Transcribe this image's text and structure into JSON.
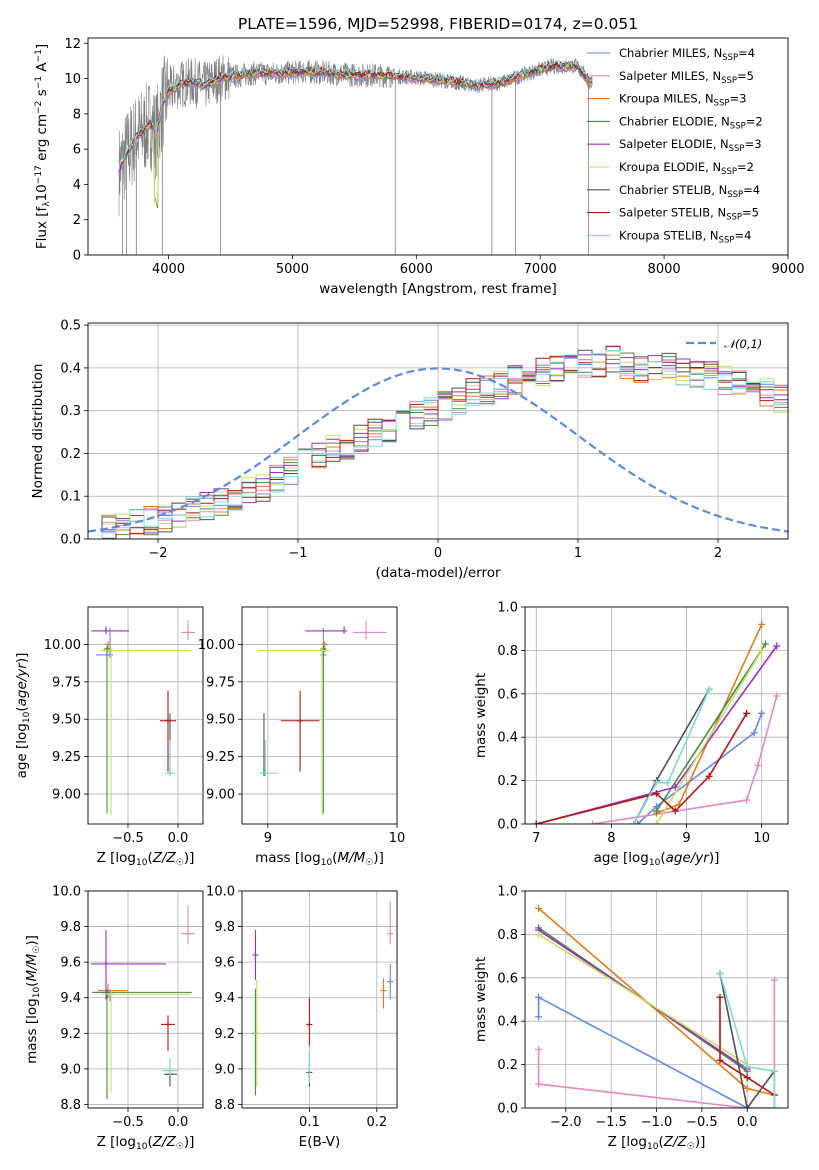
{
  "figure": {
    "title": "PLATE=1596, MJD=52998, FIBERID=0174, z=0.051"
  },
  "colors": {
    "Chabrier MILES": "#6688dd",
    "Salpeter MILES": "#e48ac0",
    "Kroupa MILES": "#e07b20",
    "Chabrier ELODIE": "#4a8a4a",
    "Salpeter ELODIE": "#9b30c0",
    "Kroupa ELODIE": "#c8e060",
    "Chabrier STELIB": "#505050",
    "Salpeter STELIB": "#b01818",
    "Kroupa STELIB": "#80d8d8",
    "data": "#7f7f7f",
    "gaussian": "#5b8bd9"
  },
  "chart_data": [
    {
      "type": "line",
      "panel": "spectrum",
      "title": "PLATE=1596, MJD=52998, FIBERID=0174, z=0.051",
      "xlabel": "wavelength [Angstrom, rest frame]",
      "ylabel": "Flux [f_λ 10^-17 erg cm^-2 s^-1 A^-1]",
      "xlim": [
        3350,
        9000
      ],
      "ylim": [
        0,
        12.3
      ],
      "xticks": [
        4000,
        5000,
        6000,
        7000,
        8000,
        9000
      ],
      "yticks": [
        0,
        2,
        4,
        6,
        8,
        10,
        12
      ],
      "grid": true,
      "legend_position": "right",
      "continuum": {
        "x": [
          3600,
          3650,
          3700,
          3750,
          3800,
          3850,
          3900,
          3950,
          4000,
          4100,
          4200,
          4300,
          4400,
          4500,
          4700,
          4900,
          5100,
          5300,
          5500,
          5700,
          5900,
          6100,
          6300,
          6500,
          6700,
          6900,
          7100,
          7300,
          7400
        ],
        "y": [
          4.8,
          5.6,
          6.2,
          6.8,
          7.0,
          7.5,
          6.8,
          8.5,
          9.3,
          9.7,
          9.8,
          9.6,
          10.0,
          10.1,
          10.3,
          10.3,
          10.4,
          10.3,
          10.2,
          10.2,
          10.1,
          10.0,
          9.8,
          9.6,
          9.8,
          10.3,
          10.7,
          10.7,
          9.8
        ]
      },
      "series": [
        {
          "name": "Chabrier MILES",
          "nssp": "4"
        },
        {
          "name": "Salpeter MILES",
          "nssp": "5"
        },
        {
          "name": "Kroupa MILES",
          "nssp": "3"
        },
        {
          "name": "Chabrier ELODIE",
          "nssp": "2"
        },
        {
          "name": "Salpeter ELODIE",
          "nssp": "3"
        },
        {
          "name": "Kroupa ELODIE",
          "nssp": "2"
        },
        {
          "name": "Chabrier STELIB",
          "nssp": "4"
        },
        {
          "name": "Salpeter STELIB",
          "nssp": "5"
        },
        {
          "name": "Kroupa STELIB",
          "nssp": "4"
        }
      ]
    },
    {
      "type": "histogram",
      "panel": "residuals",
      "xlabel": "(data-model)/error",
      "ylabel": "Normed distribution",
      "xlim": [
        -2.5,
        2.5
      ],
      "ylim": [
        0,
        0.505
      ],
      "xticks": [
        -2,
        -1,
        0,
        1,
        2
      ],
      "yticks": [
        0.0,
        0.1,
        0.2,
        0.3,
        0.4,
        0.5
      ],
      "grid": true,
      "legend_position": "top-right",
      "gaussian_label": "𝒩(0,1)",
      "bin_width": 0.1,
      "envelope": [
        0.02,
        0.025,
        0.03,
        0.035,
        0.045,
        0.05,
        0.055,
        0.065,
        0.075,
        0.085,
        0.1,
        0.11,
        0.12,
        0.14,
        0.16,
        0.18,
        0.19,
        0.21,
        0.22,
        0.24,
        0.25,
        0.26,
        0.28,
        0.29,
        0.3,
        0.31,
        0.32,
        0.34,
        0.35,
        0.36,
        0.37,
        0.38,
        0.39,
        0.4,
        0.4,
        0.41,
        0.41,
        0.42,
        0.41,
        0.4,
        0.4,
        0.4,
        0.39,
        0.39,
        0.38,
        0.37,
        0.36,
        0.35,
        0.34,
        0.33,
        0.31,
        0.3,
        0.28,
        0.27,
        0.25,
        0.24,
        0.22,
        0.21,
        0.19,
        0.17,
        0.16,
        0.14,
        0.13,
        0.11,
        0.1,
        0.09,
        0.08,
        0.07,
        0.06,
        0.05,
        0.04,
        0.035,
        0.03,
        0.025,
        0.02
      ]
    },
    {
      "type": "scatter",
      "panel": "age-vs-Z",
      "xlabel": "Z [log10(Z/Z☉)]",
      "ylabel": "age [log10(age/yr)]",
      "xlim": [
        -0.9,
        0.25
      ],
      "ylim": [
        8.8,
        10.25
      ],
      "xticks": [
        -0.5,
        0.0
      ],
      "yticks": [
        9.0,
        9.25,
        9.5,
        9.75,
        10.0
      ],
      "points": [
        {
          "series": "Chabrier MILES",
          "x": -0.68,
          "xerr": [
            0.14,
            0.0
          ],
          "y": 9.93,
          "yerr": [
            0.0,
            0.18
          ]
        },
        {
          "series": "Salpeter MILES",
          "x": 0.1,
          "xerr": [
            0.07,
            0.07
          ],
          "y": 10.08,
          "yerr": [
            0.05,
            0.08
          ]
        },
        {
          "series": "Kroupa MILES",
          "x": -0.7,
          "xerr": [
            0.0,
            0.02
          ],
          "y": 10.0,
          "yerr": [
            0.05,
            0.0
          ]
        },
        {
          "series": "Chabrier ELODIE",
          "x": -0.71,
          "xerr": [
            0.0,
            0.0
          ],
          "y": 9.97,
          "yerr": [
            1.1,
            0.0
          ]
        },
        {
          "series": "Salpeter ELODIE",
          "x": -0.72,
          "xerr": [
            0.15,
            0.23
          ],
          "y": 10.09,
          "yerr": [
            0.0,
            0.03
          ]
        },
        {
          "series": "Kroupa ELODIE",
          "x": -0.67,
          "xerr": [
            0.1,
            0.8
          ],
          "y": 9.96,
          "yerr": [
            1.1,
            0.0
          ]
        },
        {
          "series": "Chabrier STELIB",
          "x": -0.08,
          "xerr": [
            0.0,
            0.0
          ],
          "y": 9.14,
          "yerr": [
            0.0,
            0.4
          ]
        },
        {
          "series": "Salpeter STELIB",
          "x": -0.1,
          "xerr": [
            0.08,
            0.08
          ],
          "y": 9.49,
          "yerr": [
            0.34,
            0.2
          ]
        },
        {
          "series": "Kroupa STELIB",
          "x": -0.08,
          "xerr": [
            0.05,
            0.05
          ],
          "y": 9.14,
          "yerr": [
            0.02,
            0.22
          ]
        }
      ]
    },
    {
      "type": "scatter",
      "panel": "age-vs-mass",
      "xlabel": "mass [log10(M/M☉)]",
      "ylabel": "",
      "xlim": [
        8.8,
        10.0
      ],
      "ylim": [
        8.8,
        10.25
      ],
      "xticks": [
        9,
        10
      ],
      "yticks": [
        9.0,
        9.25,
        9.5,
        9.75,
        10.0
      ],
      "points": [
        {
          "series": "Chabrier MILES",
          "x": 9.43,
          "xerr": [
            0.0,
            0.0
          ],
          "y": 9.93,
          "yerr": [
            0.0,
            0.18
          ]
        },
        {
          "series": "Salpeter MILES",
          "x": 9.76,
          "xerr": [
            0.1,
            0.16
          ],
          "y": 10.08,
          "yerr": [
            0.05,
            0.08
          ]
        },
        {
          "series": "Kroupa MILES",
          "x": 9.44,
          "xerr": [
            0.0,
            0.02
          ],
          "y": 10.0,
          "yerr": [
            0.05,
            0.0
          ]
        },
        {
          "series": "Chabrier ELODIE",
          "x": 9.43,
          "xerr": [
            0.0,
            0.0
          ],
          "y": 9.97,
          "yerr": [
            1.1,
            0.0
          ]
        },
        {
          "series": "Salpeter ELODIE",
          "x": 9.59,
          "xerr": [
            0.3,
            0.0
          ],
          "y": 10.09,
          "yerr": [
            0.0,
            0.03
          ]
        },
        {
          "series": "Kroupa ELODIE",
          "x": 9.42,
          "xerr": [
            0.5,
            0.06
          ],
          "y": 9.96,
          "yerr": [
            1.1,
            0.0
          ]
        },
        {
          "series": "Chabrier STELIB",
          "x": 8.97,
          "xerr": [
            0.0,
            0.0
          ],
          "y": 9.14,
          "yerr": [
            0.0,
            0.4
          ]
        },
        {
          "series": "Salpeter STELIB",
          "x": 9.25,
          "xerr": [
            0.15,
            0.15
          ],
          "y": 9.49,
          "yerr": [
            0.34,
            0.2
          ]
        },
        {
          "series": "Kroupa STELIB",
          "x": 8.98,
          "xerr": [
            0.05,
            0.1
          ],
          "y": 9.14,
          "yerr": [
            0.02,
            0.22
          ]
        }
      ]
    },
    {
      "type": "line",
      "panel": "mass-weight-vs-age",
      "xlabel": "age [log10(age/yr)]",
      "ylabel": "mass weight",
      "xlim": [
        6.85,
        10.35
      ],
      "ylim": [
        0,
        1.0
      ],
      "xticks": [
        7,
        8,
        9,
        10
      ],
      "yticks": [
        0.0,
        0.2,
        0.4,
        0.6,
        0.8,
        1.0
      ],
      "grid": true,
      "series": [
        {
          "name": "Chabrier MILES",
          "x": [
            8.35,
            8.6,
            9.9,
            10.0
          ],
          "y": [
            0.0,
            0.08,
            0.42,
            0.51
          ]
        },
        {
          "name": "Salpeter MILES",
          "x": [
            7.75,
            9.8,
            9.95,
            10.2
          ],
          "y": [
            0.0,
            0.11,
            0.27,
            0.59
          ]
        },
        {
          "name": "Kroupa MILES",
          "x": [
            8.6,
            8.9,
            10.0
          ],
          "y": [
            0.05,
            0.09,
            0.92
          ]
        },
        {
          "name": "Chabrier ELODIE",
          "x": [
            8.6,
            10.05
          ],
          "y": [
            0.06,
            0.83
          ]
        },
        {
          "name": "Salpeter ELODIE",
          "x": [
            7.0,
            8.85,
            10.2
          ],
          "y": [
            0.0,
            0.17,
            0.82
          ]
        },
        {
          "name": "Kroupa ELODIE",
          "x": [
            8.6,
            10.0
          ],
          "y": [
            0.0,
            0.8
          ]
        },
        {
          "name": "Chabrier STELIB",
          "x": [
            8.3,
            8.6,
            9.3
          ],
          "y": [
            0.0,
            0.2,
            0.62
          ]
        },
        {
          "name": "Salpeter STELIB",
          "x": [
            7.0,
            8.6,
            8.85,
            9.3,
            9.8
          ],
          "y": [
            0.0,
            0.14,
            0.06,
            0.22,
            0.51
          ]
        },
        {
          "name": "Kroupa STELIB",
          "x": [
            8.3,
            8.6,
            8.75,
            9.3
          ],
          "y": [
            0.0,
            0.19,
            0.19,
            0.62
          ]
        }
      ]
    },
    {
      "type": "scatter",
      "panel": "mass-vs-Z",
      "xlabel": "Z [log10(Z/Z☉)]",
      "ylabel": "mass [log10(M/M☉)]",
      "xlim": [
        -0.9,
        0.25
      ],
      "ylim": [
        8.78,
        10.0
      ],
      "xticks": [
        -0.5,
        0.0
      ],
      "yticks": [
        8.8,
        9.0,
        9.2,
        9.4,
        9.6,
        9.8,
        10.0
      ],
      "points": [
        {
          "series": "Chabrier MILES",
          "x": -0.68,
          "xerr": [
            0.16,
            0.0
          ],
          "y": 9.43,
          "yerr": [
            0.05,
            0.0
          ]
        },
        {
          "series": "Salpeter MILES",
          "x": 0.1,
          "xerr": [
            0.07,
            0.07
          ],
          "y": 9.76,
          "yerr": [
            0.06,
            0.16
          ]
        },
        {
          "series": "Kroupa MILES",
          "x": -0.7,
          "xerr": [
            0.1,
            0.2
          ],
          "y": 9.44,
          "yerr": [
            0.04,
            0.04
          ]
        },
        {
          "series": "Chabrier ELODIE",
          "x": -0.71,
          "xerr": [
            0.15,
            0.85
          ],
          "y": 9.43,
          "yerr": [
            0.6,
            0.0
          ]
        },
        {
          "series": "Salpeter ELODIE",
          "x": -0.72,
          "xerr": [
            0.15,
            0.6
          ],
          "y": 9.59,
          "yerr": [
            0.2,
            0.19
          ]
        },
        {
          "series": "Kroupa ELODIE",
          "x": -0.67,
          "xerr": [
            0.1,
            0.8
          ],
          "y": 9.42,
          "yerr": [
            0.55,
            0.0
          ]
        },
        {
          "series": "Chabrier STELIB",
          "x": -0.08,
          "xerr": [
            0.06,
            0.07
          ],
          "y": 8.97,
          "yerr": [
            0.07,
            0.08
          ]
        },
        {
          "series": "Salpeter STELIB",
          "x": -0.1,
          "xerr": [
            0.07,
            0.07
          ],
          "y": 9.25,
          "yerr": [
            0.15,
            0.05
          ]
        },
        {
          "series": "Kroupa STELIB",
          "x": -0.08,
          "xerr": [
            0.08,
            0.08
          ],
          "y": 8.99,
          "yerr": [
            0.03,
            0.07
          ]
        }
      ]
    },
    {
      "type": "scatter",
      "panel": "mass-vs-EBV",
      "xlabel": "E(B-V)",
      "ylabel": "",
      "xlim": [
        0.0,
        0.23
      ],
      "ylim": [
        8.78,
        10.0
      ],
      "xticks": [
        0.1,
        0.2
      ],
      "yticks": [
        8.8,
        9.0,
        9.2,
        9.4,
        9.6,
        9.8,
        10.0
      ],
      "points": [
        {
          "series": "Chabrier MILES",
          "x": 0.22,
          "y": 9.49,
          "yerr": [
            0.1,
            0.1
          ]
        },
        {
          "series": "Salpeter MILES",
          "x": 0.22,
          "y": 9.76,
          "yerr": [
            0.06,
            0.18
          ]
        },
        {
          "series": "Kroupa MILES",
          "x": 0.21,
          "y": 9.44,
          "yerr": [
            0.1,
            0.07
          ]
        },
        {
          "series": "Chabrier ELODIE",
          "x": 0.02,
          "y": 9.2,
          "yerr": [
            0.35,
            0.25
          ]
        },
        {
          "series": "Salpeter ELODIE",
          "x": 0.02,
          "y": 9.64,
          "yerr": [
            0.14,
            0.14
          ]
        },
        {
          "series": "Kroupa ELODIE",
          "x": 0.022,
          "y": 9.2,
          "yerr": [
            0.3,
            0.3
          ]
        },
        {
          "series": "Chabrier STELIB",
          "x": 0.1,
          "y": 8.98,
          "yerr": [
            0.08,
            0.1
          ]
        },
        {
          "series": "Salpeter STELIB",
          "x": 0.1,
          "y": 9.25,
          "yerr": [
            0.12,
            0.15
          ]
        },
        {
          "series": "Kroupa STELIB",
          "x": 0.1,
          "y": 9.0,
          "yerr": [
            0.08,
            0.1
          ]
        }
      ]
    },
    {
      "type": "line",
      "panel": "mass-weight-vs-Z",
      "xlabel": "Z [log10(Z/Z☉)]",
      "ylabel": "mass weight",
      "xlim": [
        -2.45,
        0.45
      ],
      "ylim": [
        0,
        1.0
      ],
      "xticks": [
        -2.0,
        -1.5,
        -1.0,
        -0.5,
        0.0
      ],
      "yticks": [
        0.0,
        0.2,
        0.4,
        0.6,
        0.8,
        1.0
      ],
      "grid": true,
      "series": [
        {
          "name": "Chabrier MILES",
          "x": [
            -2.3,
            -2.3,
            0.0
          ],
          "y": [
            0.42,
            0.51,
            0.0
          ]
        },
        {
          "name": "Salpeter MILES",
          "x": [
            -2.3,
            -2.3,
            0.0,
            0.3,
            0.3
          ],
          "y": [
            0.27,
            0.11,
            0.0,
            0.0,
            0.59
          ]
        },
        {
          "name": "Kroupa MILES",
          "x": [
            -2.3,
            0.0,
            0.3
          ],
          "y": [
            0.92,
            0.09,
            0.06
          ]
        },
        {
          "name": "Chabrier ELODIE",
          "x": [
            -2.3,
            0.0
          ],
          "y": [
            0.83,
            0.17
          ]
        },
        {
          "name": "Salpeter ELODIE",
          "x": [
            -2.3,
            0.0
          ],
          "y": [
            0.82,
            0.18
          ]
        },
        {
          "name": "Kroupa ELODIE",
          "x": [
            -2.3,
            0.0
          ],
          "y": [
            0.8,
            0.2
          ]
        },
        {
          "name": "Chabrier STELIB",
          "x": [
            -0.3,
            0.0,
            0.3
          ],
          "y": [
            0.62,
            0.0,
            0.17
          ]
        },
        {
          "name": "Salpeter STELIB",
          "x": [
            -0.3,
            -0.3,
            0.0,
            0.3
          ],
          "y": [
            0.51,
            0.22,
            0.14,
            0.06
          ]
        },
        {
          "name": "Kroupa STELIB",
          "x": [
            -0.3,
            0.0,
            0.3,
            0.3
          ],
          "y": [
            0.62,
            0.19,
            0.17,
            0.0
          ]
        }
      ]
    }
  ]
}
